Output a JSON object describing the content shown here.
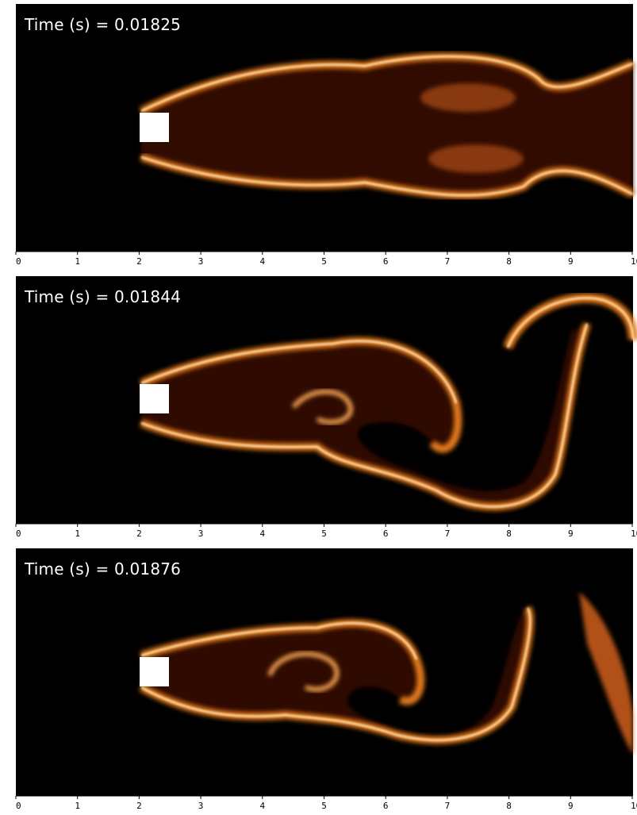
{
  "panels": [
    {
      "time_label": "Time (s) = 0.01825"
    },
    {
      "time_label": "Time (s) = 0.01844"
    },
    {
      "time_label": "Time (s) = 0.01876"
    }
  ],
  "axis": {
    "ticks": [
      "0",
      "1",
      "2",
      "3",
      "4",
      "5",
      "6",
      "7",
      "8",
      "9",
      "10"
    ]
  },
  "colors": {
    "background": "#000000",
    "obstacle": "#ffffff",
    "plume_edge": "#fff0c8",
    "plume_core": "#e0781c",
    "plume_dark": "#6a1800"
  },
  "obstacle_icon": "square-obstacle"
}
